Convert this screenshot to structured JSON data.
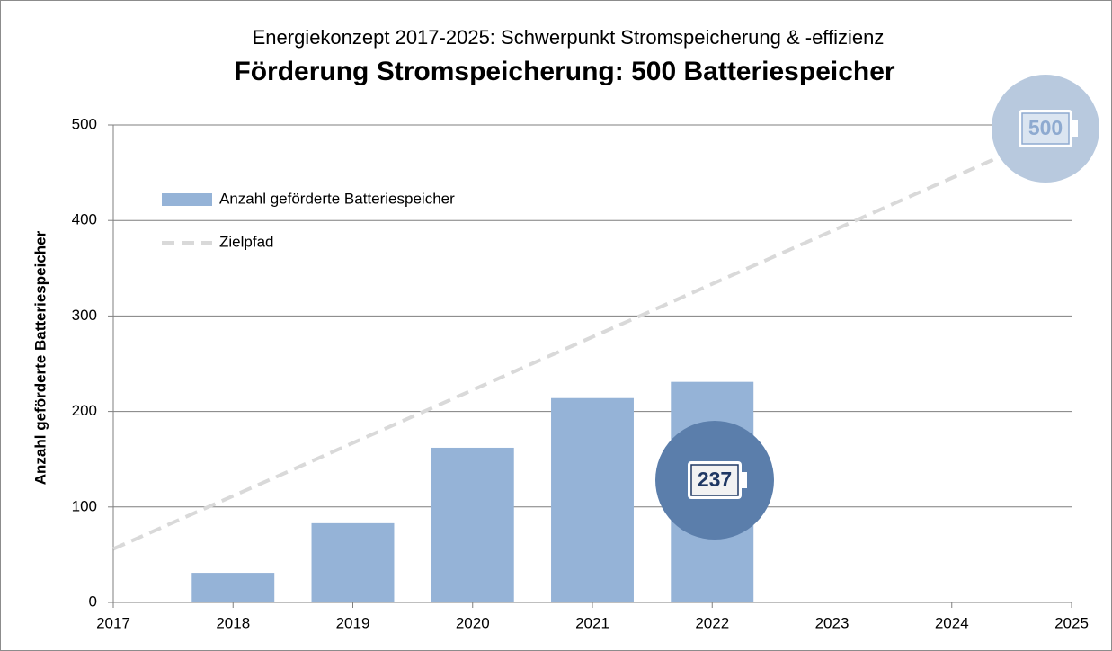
{
  "chart_data": {
    "type": "bar",
    "subtitle": "Energiekonzept 2017-2025: Schwerpunkt Stromspeicherung & -effizienz",
    "title": "Förderung Stromspeicherung:  500 Batteriespeicher",
    "y_label": "Anzahl geförderte Batteriespeicher",
    "xlim": [
      2017,
      2025
    ],
    "xticks": [
      2017,
      2018,
      2019,
      2020,
      2021,
      2022,
      2023,
      2024,
      2025
    ],
    "ylim": [
      0,
      500
    ],
    "yticks": [
      0,
      100,
      200,
      300,
      400,
      500
    ],
    "grid": true,
    "legend": "upper left",
    "series": [
      {
        "name": "Anzahl geförderte Batteriespeicher",
        "type": "bar",
        "color": "#95b3d7",
        "x": [
          2018,
          2019,
          2020,
          2021,
          2022
        ],
        "values": [
          31,
          83,
          162,
          214,
          231
        ]
      },
      {
        "name": "Zielpfad",
        "type": "line",
        "color": "#d9d9d9",
        "dashed": true,
        "x": [
          2017,
          2025
        ],
        "values": [
          56,
          500
        ]
      }
    ],
    "annotations": [
      {
        "text": "500",
        "color": "#b8c9de"
      },
      {
        "text": "237",
        "color": "#5b7eab"
      }
    ]
  }
}
